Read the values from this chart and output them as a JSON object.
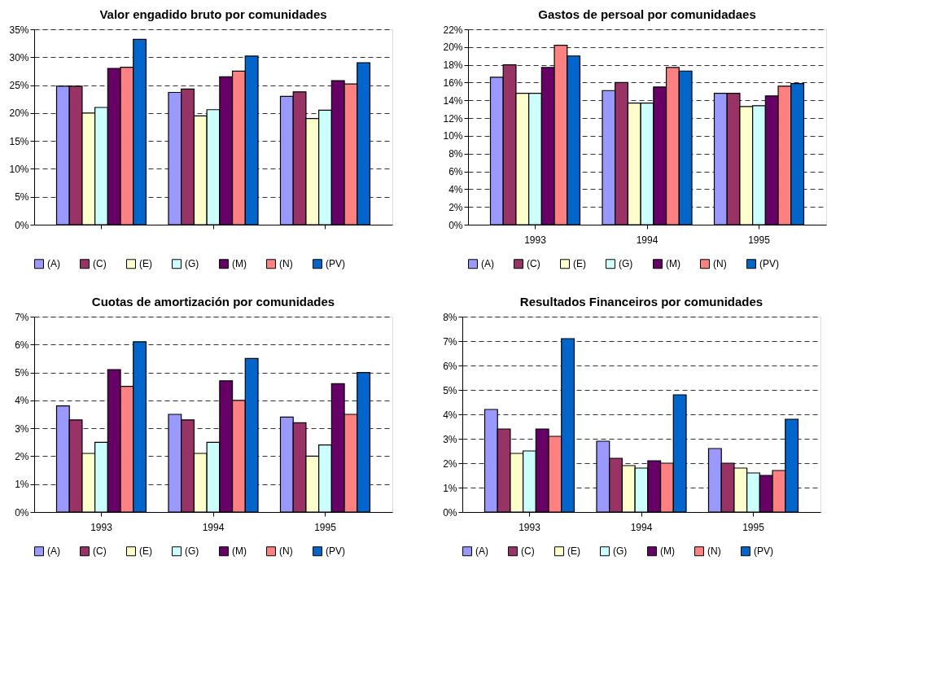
{
  "chart_data": [
    {
      "type": "bar",
      "title": "Valor engadido bruto por comunidades",
      "categories": [
        null,
        null,
        null
      ],
      "ylim": [
        0,
        35
      ],
      "yticks": [
        {
          "value": 0,
          "label": "0%"
        },
        {
          "value": 5,
          "label": "5%"
        },
        {
          "value": 10,
          "label": "10%"
        },
        {
          "value": 15,
          "label": "15%"
        },
        {
          "value": 20,
          "label": "20%"
        },
        {
          "value": 25,
          "label": "25%"
        },
        {
          "value": 30,
          "label": "30%"
        },
        {
          "value": 35,
          "label": "35%"
        }
      ],
      "grid": "y",
      "line_style": "dashed",
      "legend": "bottom",
      "series": [
        {
          "name": "(A)",
          "color": "#9999ff",
          "values": [
            24.8,
            23.7,
            23.0
          ]
        },
        {
          "name": "(C)",
          "color": "#993366",
          "values": [
            24.8,
            24.3,
            23.8
          ]
        },
        {
          "name": "(E)",
          "color": "#ffffcc",
          "values": [
            20.0,
            19.5,
            19.0
          ]
        },
        {
          "name": "(G)",
          "color": "#ccffff",
          "values": [
            21.0,
            20.6,
            20.5
          ]
        },
        {
          "name": "(M)",
          "color": "#660066",
          "values": [
            28.0,
            26.5,
            25.8
          ]
        },
        {
          "name": "(N)",
          "color": "#ff8080",
          "values": [
            28.2,
            27.5,
            25.2
          ]
        },
        {
          "name": "(PV)",
          "color": "#0066cc",
          "values": [
            33.2,
            30.2,
            29.0
          ]
        }
      ]
    },
    {
      "type": "bar",
      "title": "Gastos de persoal por comunidadaes",
      "categories": [
        "1993",
        "1994",
        "1995"
      ],
      "ylim": [
        0,
        22
      ],
      "yticks": [
        {
          "value": 0,
          "label": "0%"
        },
        {
          "value": 2,
          "label": "2%"
        },
        {
          "value": 4,
          "label": "4%"
        },
        {
          "value": 6,
          "label": "6%"
        },
        {
          "value": 8,
          "label": "8%"
        },
        {
          "value": 10,
          "label": "10%"
        },
        {
          "value": 12,
          "label": "12%"
        },
        {
          "value": 14,
          "label": "14%"
        },
        {
          "value": 16,
          "label": "16%"
        },
        {
          "value": 18,
          "label": "18%"
        },
        {
          "value": 20,
          "label": "20%"
        },
        {
          "value": 22,
          "label": "22%"
        }
      ],
      "grid": "y",
      "line_style": "dashed",
      "legend": "bottom",
      "series": [
        {
          "name": "(A)",
          "color": "#9999ff",
          "values": [
            16.6,
            15.1,
            14.8
          ]
        },
        {
          "name": "(C)",
          "color": "#993366",
          "values": [
            18.0,
            16.0,
            14.8
          ]
        },
        {
          "name": "(E)",
          "color": "#ffffcc",
          "values": [
            14.8,
            13.7,
            13.3
          ]
        },
        {
          "name": "(G)",
          "color": "#ccffff",
          "values": [
            14.8,
            13.7,
            13.4
          ]
        },
        {
          "name": "(M)",
          "color": "#660066",
          "values": [
            17.7,
            15.5,
            14.5
          ]
        },
        {
          "name": "(N)",
          "color": "#ff8080",
          "values": [
            20.2,
            17.7,
            15.6
          ]
        },
        {
          "name": "(PV)",
          "color": "#0066cc",
          "values": [
            19.0,
            17.3,
            15.9
          ]
        }
      ]
    },
    {
      "type": "bar",
      "title": "Cuotas de amortización por comunidades",
      "categories": [
        "1993",
        "1994",
        "1995"
      ],
      "ylim": [
        0,
        7
      ],
      "yticks": [
        {
          "value": 0,
          "label": "0%"
        },
        {
          "value": 1,
          "label": "1%"
        },
        {
          "value": 2,
          "label": "2%"
        },
        {
          "value": 3,
          "label": "3%"
        },
        {
          "value": 4,
          "label": "4%"
        },
        {
          "value": 5,
          "label": "5%"
        },
        {
          "value": 6,
          "label": "6%"
        },
        {
          "value": 7,
          "label": "7%"
        }
      ],
      "grid": "y",
      "line_style": "dashed",
      "legend": "bottom",
      "series": [
        {
          "name": "(A)",
          "color": "#9999ff",
          "values": [
            3.8,
            3.5,
            3.4
          ]
        },
        {
          "name": "(C)",
          "color": "#993366",
          "values": [
            3.3,
            3.3,
            3.2
          ]
        },
        {
          "name": "(E)",
          "color": "#ffffcc",
          "values": [
            2.1,
            2.1,
            2.0
          ]
        },
        {
          "name": "(G)",
          "color": "#ccffff",
          "values": [
            2.5,
            2.5,
            2.4
          ]
        },
        {
          "name": "(M)",
          "color": "#660066",
          "values": [
            5.1,
            4.7,
            4.6
          ]
        },
        {
          "name": "(N)",
          "color": "#ff8080",
          "values": [
            4.5,
            4.0,
            3.5
          ]
        },
        {
          "name": "(PV)",
          "color": "#0066cc",
          "values": [
            6.1,
            5.5,
            5.0
          ]
        }
      ]
    },
    {
      "type": "bar",
      "title": "Resultados Financeiros por comunidades",
      "categories": [
        "1993",
        "1994",
        "1995"
      ],
      "ylim": [
        0,
        8
      ],
      "yticks": [
        {
          "value": 0,
          "label": "0%"
        },
        {
          "value": 1,
          "label": "1%"
        },
        {
          "value": 2,
          "label": "2%"
        },
        {
          "value": 3,
          "label": "3%"
        },
        {
          "value": 4,
          "label": "4%"
        },
        {
          "value": 5,
          "label": "5%"
        },
        {
          "value": 6,
          "label": "6%"
        },
        {
          "value": 7,
          "label": "7%"
        },
        {
          "value": 8,
          "label": "8%"
        }
      ],
      "grid": "y",
      "line_style": "dashed",
      "legend": "bottom",
      "series": [
        {
          "name": "(A)",
          "color": "#9999ff",
          "values": [
            4.2,
            2.9,
            2.6
          ]
        },
        {
          "name": "(C)",
          "color": "#993366",
          "values": [
            3.4,
            2.2,
            2.0
          ]
        },
        {
          "name": "(E)",
          "color": "#ffffcc",
          "values": [
            2.4,
            1.9,
            1.8
          ]
        },
        {
          "name": "(G)",
          "color": "#ccffff",
          "values": [
            2.5,
            1.8,
            1.6
          ]
        },
        {
          "name": "(M)",
          "color": "#660066",
          "values": [
            3.4,
            2.1,
            1.5
          ]
        },
        {
          "name": "(N)",
          "color": "#ff8080",
          "values": [
            3.1,
            2.0,
            1.7
          ]
        },
        {
          "name": "(PV)",
          "color": "#0066cc",
          "values": [
            7.1,
            4.8,
            3.8
          ]
        }
      ]
    }
  ]
}
